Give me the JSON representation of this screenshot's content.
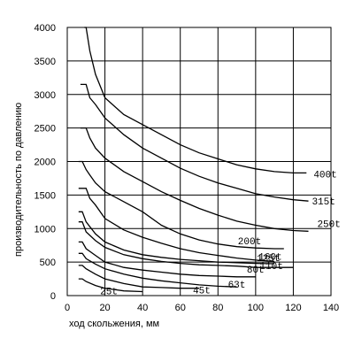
{
  "chart_data": {
    "type": "line",
    "title": "",
    "xlabel": "ход скольжения, мм",
    "ylabel": "производительность по давлению",
    "xlim": [
      0,
      140
    ],
    "ylim": [
      0,
      4000
    ],
    "x_ticks": [
      "0",
      "20",
      "40",
      "60",
      "80",
      "100",
      "120",
      "140"
    ],
    "y_ticks": [
      "0",
      "500",
      "1000",
      "1500",
      "2000",
      "2500",
      "3000",
      "3500",
      "4000"
    ],
    "grid": true,
    "series": [
      {
        "name": "400t",
        "points": [
          [
            9,
            4000
          ],
          [
            10,
            4000
          ],
          [
            12,
            3650
          ],
          [
            15,
            3300
          ],
          [
            20,
            2950
          ],
          [
            30,
            2700
          ],
          [
            40,
            2550
          ],
          [
            50,
            2400
          ],
          [
            60,
            2250
          ],
          [
            70,
            2130
          ],
          [
            80,
            2040
          ],
          [
            90,
            1950
          ],
          [
            100,
            1890
          ],
          [
            110,
            1850
          ],
          [
            120,
            1830
          ],
          [
            127,
            1830
          ]
        ]
      },
      {
        "name": "315t",
        "points": [
          [
            7,
            3150
          ],
          [
            10,
            3150
          ],
          [
            12,
            2950
          ],
          [
            15,
            2850
          ],
          [
            20,
            2650
          ],
          [
            30,
            2400
          ],
          [
            40,
            2200
          ],
          [
            50,
            2050
          ],
          [
            60,
            1900
          ],
          [
            70,
            1780
          ],
          [
            80,
            1680
          ],
          [
            90,
            1600
          ],
          [
            100,
            1520
          ],
          [
            110,
            1470
          ],
          [
            120,
            1430
          ],
          [
            128,
            1410
          ]
        ]
      },
      {
        "name": "250t",
        "points": [
          [
            7,
            2500
          ],
          [
            10,
            2500
          ],
          [
            12,
            2350
          ],
          [
            15,
            2200
          ],
          [
            20,
            2050
          ],
          [
            30,
            1850
          ],
          [
            40,
            1700
          ],
          [
            50,
            1550
          ],
          [
            60,
            1420
          ],
          [
            70,
            1300
          ],
          [
            80,
            1200
          ],
          [
            90,
            1110
          ],
          [
            100,
            1050
          ],
          [
            110,
            1000
          ],
          [
            120,
            970
          ],
          [
            128,
            960
          ]
        ]
      },
      {
        "name": "200t",
        "points": [
          [
            6,
            2000
          ],
          [
            8,
            2000
          ],
          [
            10,
            1880
          ],
          [
            12,
            1800
          ],
          [
            15,
            1680
          ],
          [
            20,
            1550
          ],
          [
            30,
            1400
          ],
          [
            40,
            1250
          ],
          [
            50,
            1050
          ],
          [
            60,
            920
          ],
          [
            70,
            830
          ],
          [
            80,
            770
          ],
          [
            90,
            730
          ],
          [
            100,
            710
          ],
          [
            110,
            700
          ],
          [
            115,
            700
          ]
        ]
      },
      {
        "name": "160t",
        "points": [
          [
            6,
            1600
          ],
          [
            10,
            1600
          ],
          [
            12,
            1450
          ],
          [
            15,
            1350
          ],
          [
            20,
            1150
          ],
          [
            30,
            980
          ],
          [
            40,
            870
          ],
          [
            50,
            780
          ],
          [
            60,
            700
          ],
          [
            70,
            640
          ],
          [
            80,
            600
          ],
          [
            90,
            560
          ],
          [
            100,
            530
          ],
          [
            110,
            510
          ]
        ]
      },
      {
        "name": "125t",
        "points": [
          [
            6,
            1250
          ],
          [
            8,
            1250
          ],
          [
            10,
            1100
          ],
          [
            15,
            920
          ],
          [
            20,
            800
          ],
          [
            30,
            680
          ],
          [
            40,
            610
          ],
          [
            50,
            570
          ],
          [
            60,
            540
          ],
          [
            70,
            520
          ],
          [
            80,
            500
          ],
          [
            90,
            490
          ],
          [
            100,
            480
          ],
          [
            110,
            475
          ]
        ]
      },
      {
        "name": "110t",
        "points": [
          [
            6,
            1100
          ],
          [
            8,
            1100
          ],
          [
            10,
            950
          ],
          [
            15,
            820
          ],
          [
            20,
            720
          ],
          [
            30,
            610
          ],
          [
            40,
            550
          ],
          [
            50,
            510
          ],
          [
            60,
            480
          ],
          [
            70,
            460
          ],
          [
            80,
            450
          ],
          [
            90,
            440
          ],
          [
            100,
            420
          ],
          [
            120,
            420
          ]
        ]
      },
      {
        "name": "80t",
        "points": [
          [
            6,
            800
          ],
          [
            8,
            800
          ],
          [
            10,
            700
          ],
          [
            15,
            600
          ],
          [
            20,
            500
          ],
          [
            30,
            420
          ],
          [
            40,
            380
          ],
          [
            50,
            350
          ],
          [
            60,
            320
          ],
          [
            70,
            300
          ],
          [
            80,
            290
          ],
          [
            90,
            280
          ],
          [
            100,
            280
          ]
        ]
      },
      {
        "name": "63t",
        "points": [
          [
            6,
            630
          ],
          [
            8,
            630
          ],
          [
            10,
            550
          ],
          [
            15,
            470
          ],
          [
            20,
            400
          ],
          [
            30,
            320
          ],
          [
            40,
            260
          ],
          [
            50,
            220
          ],
          [
            60,
            190
          ],
          [
            70,
            160
          ],
          [
            80,
            140
          ],
          [
            90,
            130
          ]
        ]
      },
      {
        "name": "45t",
        "points": [
          [
            6,
            450
          ],
          [
            8,
            450
          ],
          [
            10,
            400
          ],
          [
            15,
            320
          ],
          [
            20,
            250
          ],
          [
            30,
            180
          ],
          [
            40,
            130
          ],
          [
            50,
            120
          ],
          [
            60,
            110
          ],
          [
            70,
            110
          ]
        ]
      },
      {
        "name": "25t",
        "points": [
          [
            6,
            250
          ],
          [
            8,
            250
          ],
          [
            10,
            210
          ],
          [
            15,
            150
          ],
          [
            20,
            110
          ],
          [
            30,
            70
          ],
          [
            40,
            60
          ]
        ]
      }
    ]
  }
}
